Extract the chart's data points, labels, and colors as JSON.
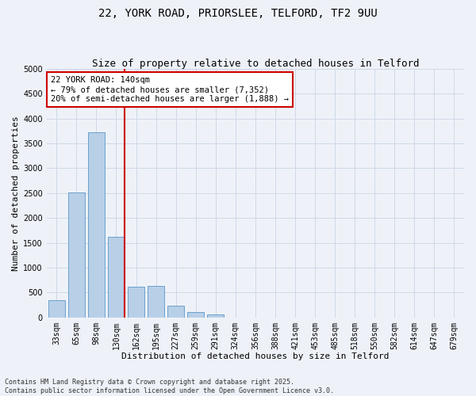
{
  "title_line1": "22, YORK ROAD, PRIORSLEE, TELFORD, TF2 9UU",
  "title_line2": "Size of property relative to detached houses in Telford",
  "xlabel": "Distribution of detached houses by size in Telford",
  "ylabel": "Number of detached properties",
  "categories": [
    "33sqm",
    "65sqm",
    "98sqm",
    "130sqm",
    "162sqm",
    "195sqm",
    "227sqm",
    "259sqm",
    "291sqm",
    "324sqm",
    "356sqm",
    "388sqm",
    "421sqm",
    "453sqm",
    "485sqm",
    "518sqm",
    "550sqm",
    "582sqm",
    "614sqm",
    "647sqm",
    "679sqm"
  ],
  "values": [
    350,
    2520,
    3720,
    1620,
    620,
    630,
    230,
    110,
    65,
    0,
    0,
    0,
    0,
    0,
    0,
    0,
    0,
    0,
    0,
    0,
    0
  ],
  "bar_color": "#b8cfe8",
  "bar_edge_color": "#5a96c8",
  "red_line_index": 3,
  "annotation_text": "22 YORK ROAD: 140sqm\n← 79% of detached houses are smaller (7,352)\n20% of semi-detached houses are larger (1,888) →",
  "annotation_box_color": "#ffffff",
  "annotation_box_edge": "#cc0000",
  "red_line_color": "#cc0000",
  "ylim": [
    0,
    5000
  ],
  "yticks": [
    0,
    500,
    1000,
    1500,
    2000,
    2500,
    3000,
    3500,
    4000,
    4500,
    5000
  ],
  "grid_color": "#d0d8e8",
  "background_color": "#eef2f8",
  "footnote": "Contains HM Land Registry data © Crown copyright and database right 2025.\nContains public sector information licensed under the Open Government Licence v3.0.",
  "title_fontsize": 10,
  "subtitle_fontsize": 9,
  "label_fontsize": 8,
  "tick_fontsize": 7,
  "annotation_fontsize": 7.5,
  "footnote_fontsize": 6
}
